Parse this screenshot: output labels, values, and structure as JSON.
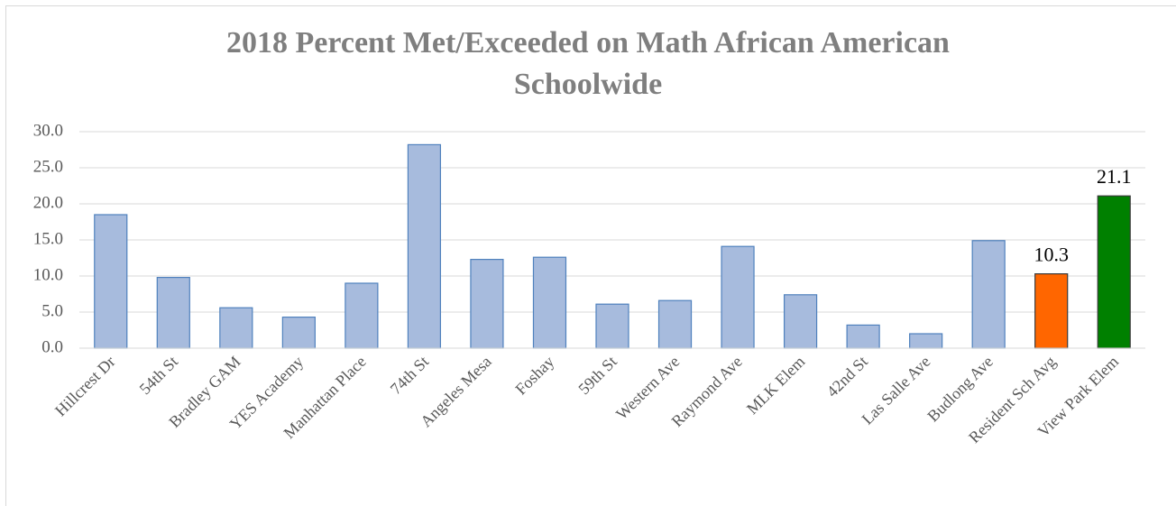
{
  "chart_data": {
    "type": "bar",
    "title": "2018  Percent Met/Exceeded on Math African American Schoolwide",
    "categories": [
      "Hillcrest Dr",
      "54th St",
      "Bradley GAM",
      "YES Academy",
      "Manhattan Place",
      "74th St",
      "Angeles Mesa",
      "Foshay",
      "59th St",
      "Western Ave",
      "Raymond Ave",
      "MLK Elem",
      "42nd St",
      "Las Salle Ave",
      "Budlong Ave",
      "Resident Sch Avg",
      "View Park Elem"
    ],
    "values": [
      18.5,
      9.8,
      5.6,
      4.3,
      9.0,
      28.2,
      12.3,
      12.6,
      6.1,
      6.6,
      14.1,
      7.4,
      3.2,
      2.0,
      14.9,
      10.3,
      21.1
    ],
    "value_labels": [
      null,
      null,
      null,
      null,
      null,
      null,
      null,
      null,
      null,
      null,
      null,
      null,
      null,
      null,
      null,
      "10.3",
      "21.1"
    ],
    "colors": [
      "#a7bbdd",
      "#a7bbdd",
      "#a7bbdd",
      "#a7bbdd",
      "#a7bbdd",
      "#a7bbdd",
      "#a7bbdd",
      "#a7bbdd",
      "#a7bbdd",
      "#a7bbdd",
      "#a7bbdd",
      "#a7bbdd",
      "#a7bbdd",
      "#a7bbdd",
      "#a7bbdd",
      "#ff6600",
      "#008000"
    ],
    "ylim": [
      0,
      30
    ],
    "yticks": [
      {
        "value": 0,
        "label": "0.0"
      },
      {
        "value": 5,
        "label": "5.0"
      },
      {
        "value": 10,
        "label": "10.0"
      },
      {
        "value": 15,
        "label": "15.0"
      },
      {
        "value": 20,
        "label": "20.0"
      },
      {
        "value": 25,
        "label": "25.0"
      },
      {
        "value": 30,
        "label": "30.0"
      }
    ],
    "grid": true
  }
}
